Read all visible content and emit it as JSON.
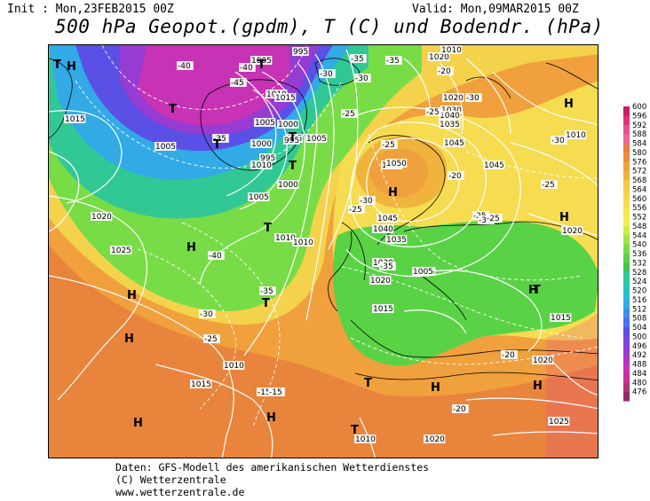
{
  "header": {
    "init": "Init : Mon,23FEB2015 00Z",
    "valid": "Valid: Mon,09MAR2015 00Z",
    "title": "500 hPa Geopot.(gpdm), T (C) und Bodendr. (hPa)"
  },
  "legend": {
    "ticks": [
      "600",
      "596",
      "592",
      "588",
      "584",
      "580",
      "576",
      "572",
      "568",
      "564",
      "560",
      "556",
      "552",
      "548",
      "544",
      "540",
      "536",
      "532",
      "528",
      "524",
      "520",
      "516",
      "512",
      "508",
      "504",
      "500",
      "496",
      "492",
      "488",
      "484",
      "480",
      "476"
    ],
    "colors": [
      "#c81e64",
      "#dc3278",
      "#e6508c",
      "#f0649a",
      "#f07848",
      "#f08c3c",
      "#f0a03c",
      "#f0b43c",
      "#f5c846",
      "#f5d24b",
      "#f5dc50",
      "#fae650",
      "#f0f050",
      "#c8f046",
      "#a0e646",
      "#78dc46",
      "#5ad246",
      "#3cc850",
      "#32c896",
      "#28c8b4",
      "#28bed2",
      "#32aae6",
      "#3c8cf0",
      "#4b6ef0",
      "#5a50e6",
      "#7846dc",
      "#963cd2",
      "#b432c8",
      "#c832b4",
      "#c83296",
      "#b43278",
      "#962864"
    ]
  },
  "map": {
    "pressure_labels": [
      "995",
      "1005",
      "1010",
      "1015",
      "1005",
      "1000",
      "995",
      "1000",
      "995",
      "1015",
      "1020",
      "1025",
      "1005",
      "1005",
      "1000",
      "1010",
      "1020",
      "1030",
      "1035",
      "1040",
      "1045",
      "1050",
      "1045",
      "1040",
      "1035",
      "1030",
      "1020",
      "1025",
      "1015",
      "1010",
      "1020",
      "1015",
      "1010",
      "1050",
      "1045",
      "1020",
      "1010",
      "1015",
      "1010",
      "1010",
      "1020",
      "1020",
      "1025",
      "1005",
      "995",
      "1005",
      "1010"
    ],
    "temp_labels": [
      "-40",
      "-35",
      "-45",
      "-40",
      "-35",
      "-30",
      "-25",
      "-30",
      "-35",
      "-30",
      "-25",
      "-20",
      "-25",
      "-30",
      "-25",
      "-20",
      "-25",
      "-25",
      "-30",
      "-35",
      "-30",
      "-25",
      "-20",
      "-15",
      "-15",
      "-20",
      "-35",
      "-30",
      "-25",
      "-40"
    ],
    "highs": [
      "H",
      "H",
      "H",
      "H",
      "H",
      "H",
      "H",
      "H",
      "H",
      "H",
      "H",
      "H"
    ],
    "lows": [
      "T",
      "T",
      "T",
      "T",
      "T",
      "T",
      "T",
      "T",
      "T",
      "T",
      "T"
    ]
  },
  "footer": {
    "line1": "Daten: GFS-Modell des amerikanischen Wetterdienstes",
    "line2": "(C) Wetterzentrale",
    "line3": "www.wetterzentrale.de"
  }
}
